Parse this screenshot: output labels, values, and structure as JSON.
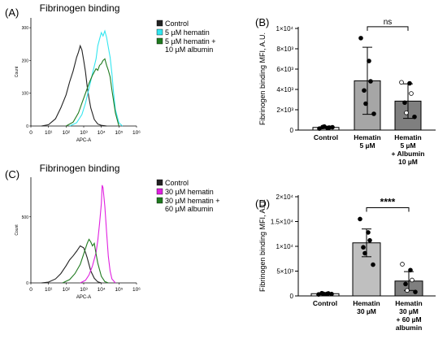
{
  "chart_data": [
    {
      "panel": "(A)",
      "type": "line",
      "title": "Fibrinogen binding",
      "xlabel": "APC-A",
      "ylabel": "Count",
      "xscale": "log",
      "x_ticks": [
        "0",
        "10¹",
        "10²",
        "10³",
        "10⁴",
        "10⁵",
        "10⁶"
      ],
      "y_ticks": [
        "0",
        "100",
        "200",
        "300"
      ],
      "ylim": [
        0,
        330
      ],
      "legend_position": "right",
      "series": [
        {
          "name": "Control",
          "color": "#222222",
          "x": [
            0.6,
            1.0,
            1.4,
            1.7,
            2.0,
            2.2,
            2.4,
            2.6,
            2.7,
            2.8,
            2.9,
            3.0,
            3.1,
            3.2,
            3.3,
            3.4,
            3.6,
            3.8,
            4.0,
            4.3
          ],
          "y": [
            0,
            4,
            22,
            55,
            95,
            135,
            168,
            210,
            225,
            245,
            232,
            200,
            165,
            120,
            85,
            55,
            20,
            6,
            2,
            0
          ]
        },
        {
          "name": "5 µM hematin",
          "color": "#33e6f0",
          "x": [
            2.2,
            2.6,
            2.9,
            3.1,
            3.3,
            3.5,
            3.7,
            3.8,
            3.9,
            4.0,
            4.1,
            4.2,
            4.3,
            4.4,
            4.5,
            4.6,
            4.7,
            4.8,
            5.0,
            5.2
          ],
          "y": [
            0,
            10,
            35,
            70,
            115,
            160,
            205,
            245,
            265,
            285,
            275,
            290,
            270,
            240,
            210,
            160,
            100,
            50,
            10,
            0
          ]
        },
        {
          "name": "5 µM hematin + 10 µM albumin",
          "color": "#1f7a1f",
          "x": [
            2.0,
            2.4,
            2.7,
            2.9,
            3.1,
            3.3,
            3.5,
            3.6,
            3.7,
            3.8,
            3.9,
            4.0,
            4.1,
            4.2,
            4.3,
            4.4,
            4.5,
            4.6,
            4.8,
            5.0
          ],
          "y": [
            0,
            12,
            40,
            70,
            100,
            130,
            155,
            165,
            175,
            170,
            185,
            190,
            200,
            205,
            185,
            170,
            150,
            110,
            40,
            0
          ]
        }
      ]
    },
    {
      "panel": "(B)",
      "type": "bar",
      "title": "",
      "xlabel": "",
      "ylabel": "Fibrinogen binding MFI, A.U.",
      "ylim": [
        0,
        10000
      ],
      "y_ticks": [
        "0",
        "2×10³",
        "4×10³",
        "6×10³",
        "8×10³",
        "1×10⁴"
      ],
      "categories": [
        "Control",
        "Hematin\n5 µM",
        "Hematin\n5 µM\n+ Albumin\n10 µM"
      ],
      "values": [
        260,
        4850,
        2850
      ],
      "errors": [
        120,
        3300,
        1700
      ],
      "bar_colors": [
        "#ffffff",
        "#a6a6a6",
        "#7f7f7f"
      ],
      "points": [
        [
          150,
          200,
          250,
          300,
          350,
          280
        ],
        [
          9050,
          6800,
          4800,
          3900,
          2600,
          1600
        ],
        [
          4700,
          4600,
          3600,
          2700,
          1700,
          1300
        ]
      ],
      "comparison": {
        "from": 1,
        "to": 2,
        "label": "ns"
      }
    },
    {
      "panel": "(C)",
      "type": "line",
      "title": "Fibrinogen binding",
      "xlabel": "APC-A",
      "ylabel": "Count",
      "xscale": "log",
      "x_ticks": [
        "0",
        "10¹",
        "10²",
        "10³",
        "10⁴",
        "10⁵",
        "10⁶"
      ],
      "y_ticks": [
        "0",
        "500"
      ],
      "ylim": [
        0,
        800
      ],
      "legend_position": "right",
      "series": [
        {
          "name": "Control",
          "color": "#222222",
          "x": [
            0.6,
            1.0,
            1.4,
            1.7,
            2.0,
            2.2,
            2.4,
            2.6,
            2.8,
            3.0,
            3.1,
            3.2,
            3.3,
            3.4,
            3.6,
            3.8,
            4.0
          ],
          "y": [
            0,
            6,
            30,
            70,
            130,
            175,
            205,
            240,
            280,
            265,
            230,
            190,
            140,
            90,
            35,
            8,
            0
          ]
        },
        {
          "name": "30 µM hematin",
          "color": "#e020e0",
          "x": [
            2.8,
            3.1,
            3.3,
            3.5,
            3.7,
            3.8,
            3.9,
            4.0,
            4.05,
            4.1,
            4.2,
            4.3,
            4.4,
            4.5,
            4.6,
            4.8
          ],
          "y": [
            0,
            20,
            60,
            130,
            230,
            320,
            450,
            600,
            740,
            720,
            580,
            380,
            200,
            90,
            30,
            0
          ]
        },
        {
          "name": "30 µM hematin + 60 µM albumin",
          "color": "#1f7a1f",
          "x": [
            1.8,
            2.2,
            2.5,
            2.8,
            3.0,
            3.2,
            3.3,
            3.4,
            3.5,
            3.6,
            3.7,
            3.8,
            4.0,
            4.2,
            4.4
          ],
          "y": [
            0,
            25,
            70,
            140,
            220,
            300,
            330,
            310,
            280,
            300,
            220,
            150,
            50,
            10,
            0
          ]
        }
      ]
    },
    {
      "panel": "(D)",
      "type": "bar",
      "title": "",
      "xlabel": "",
      "ylabel": "Fibrinogen binding MFI, A.U.",
      "ylim": [
        0,
        20000
      ],
      "y_ticks": [
        "0",
        "5×10³",
        "1×10⁴",
        "1.5×10⁴",
        "2×10⁴"
      ],
      "categories": [
        "Control",
        "Hematin\n30 µM",
        "Hematin\n30 µM\n+ 60 µM\nalbumin"
      ],
      "values": [
        450,
        10700,
        3000
      ],
      "errors": [
        120,
        2800,
        1900
      ],
      "bar_colors": [
        "#ffffff",
        "#bfbfbf",
        "#7f7f7f"
      ],
      "points": [
        [
          300,
          400,
          500,
          550,
          420,
          380
        ],
        [
          15500,
          12800,
          11200,
          9800,
          8600,
          6300
        ],
        [
          6400,
          5200,
          3200,
          2400,
          1100,
          800
        ]
      ],
      "comparison": {
        "from": 1,
        "to": 2,
        "label": "****"
      }
    }
  ],
  "panel_labels": [
    "(A)",
    "(B)",
    "(C)",
    "(D)"
  ]
}
